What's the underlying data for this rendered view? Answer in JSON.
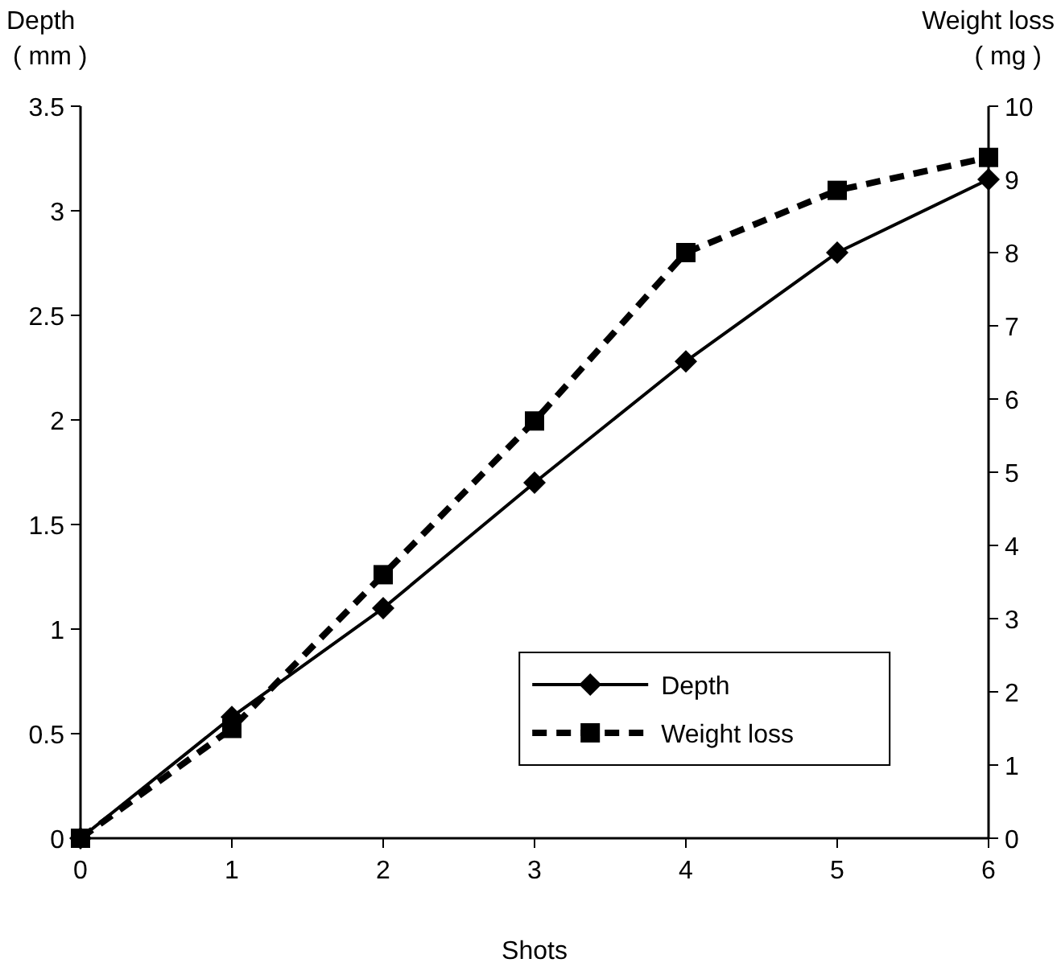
{
  "chart_data": {
    "type": "line",
    "xlabel": "Shots",
    "ylabel": "Depth\n( mm )",
    "y2label": "Weight loss\n( mg )",
    "x": [
      0,
      1,
      2,
      3,
      4,
      5,
      6
    ],
    "xlim": [
      0,
      6
    ],
    "xticks": [
      0,
      1,
      2,
      3,
      4,
      5,
      6
    ],
    "ylim": [
      0,
      3.5
    ],
    "yticks": [
      0,
      0.5,
      1,
      1.5,
      2,
      2.5,
      3,
      3.5
    ],
    "y2lim": [
      0,
      10
    ],
    "y2ticks": [
      0,
      1,
      2,
      3,
      4,
      5,
      6,
      7,
      8,
      9,
      10
    ],
    "series": [
      {
        "name": "Depth",
        "color": "#000000",
        "values": [
          0,
          0.58,
          1.1,
          1.7,
          2.28,
          2.8,
          3.15
        ],
        "marker": "diamond",
        "line_style": "solid"
      },
      {
        "name": "Weight loss",
        "color": "#000000",
        "values": [
          0,
          1.5,
          3.6,
          5.7,
          8.0,
          8.85,
          9.3
        ],
        "marker": "square",
        "line_style": "dashed",
        "axis": "y2"
      }
    ],
    "grid": false,
    "legend": "bottom right"
  }
}
